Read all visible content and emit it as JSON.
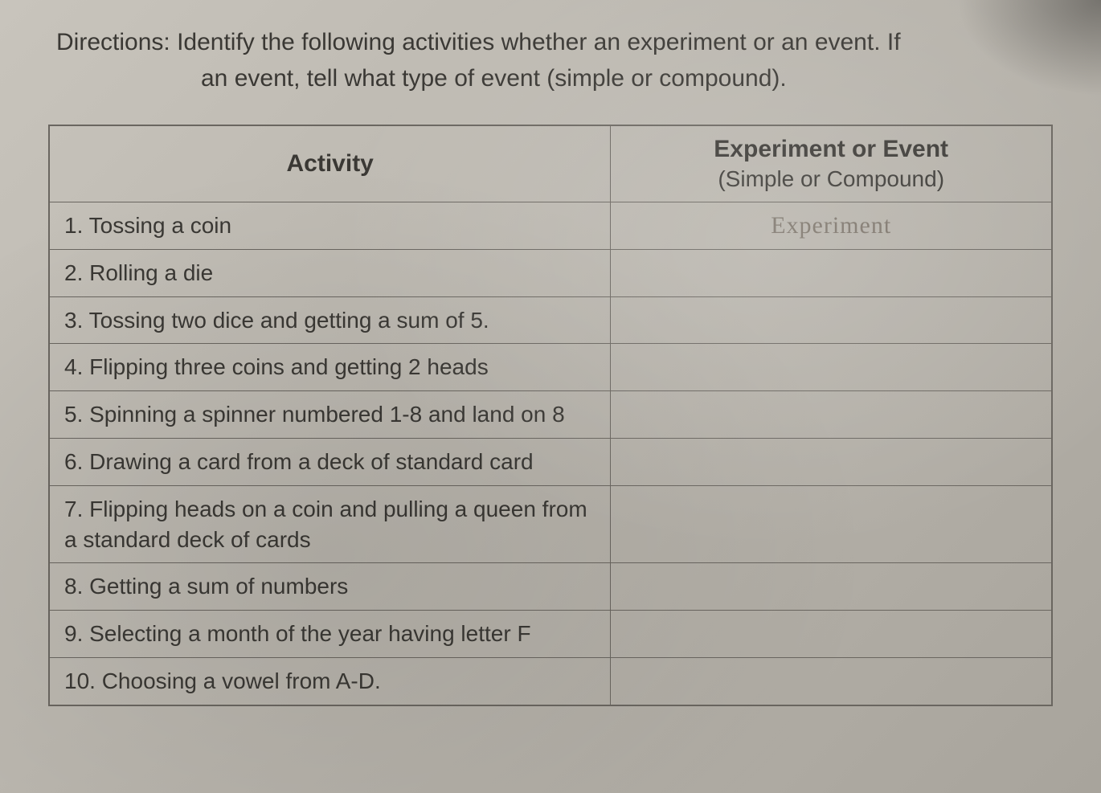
{
  "directions": {
    "label": "Directions:",
    "line1": "Identify the following activities whether an experiment or an event. If",
    "line2": "an event, tell what type of event (simple or compound)."
  },
  "table": {
    "headers": {
      "activity": "Activity",
      "answer_main": "Experiment or Event",
      "answer_sub": "(Simple or Compound)"
    },
    "rows": [
      {
        "activity": "1. Tossing a coin",
        "answer": "Experiment"
      },
      {
        "activity": "2. Rolling a die",
        "answer": ""
      },
      {
        "activity": "3. Tossing two dice and getting a sum of 5.",
        "answer": ""
      },
      {
        "activity": "4. Flipping three coins and getting 2 heads",
        "answer": ""
      },
      {
        "activity": "5. Spinning a spinner numbered 1-8 and land on 8",
        "answer": ""
      },
      {
        "activity": "6. Drawing a card from a deck of standard card",
        "answer": ""
      },
      {
        "activity": "7. Flipping heads on a coin and pulling a queen from a standard deck of cards",
        "answer": ""
      },
      {
        "activity": "8. Getting a sum of numbers",
        "answer": ""
      },
      {
        "activity": "9. Selecting a month of the year having letter F",
        "answer": ""
      },
      {
        "activity": "10. Choosing a vowel from A-D.",
        "answer": ""
      }
    ]
  },
  "style": {
    "background_color": "#b8b4ac",
    "text_color": "#3a3834",
    "border_color": "#6a6660",
    "handwriting_color": "#7a7268",
    "body_fontsize": 28,
    "header_fontsize": 30,
    "directions_fontsize": 30
  }
}
